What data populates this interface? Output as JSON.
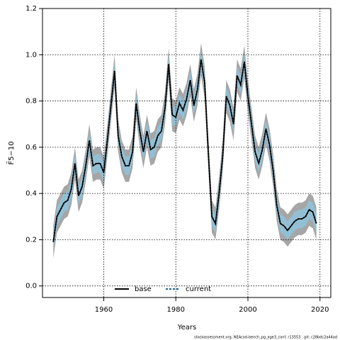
{
  "chart_data": {
    "type": "line",
    "x_label": "Years",
    "y_label": "F̄5−10",
    "footer": "stockassessment.org, NEAcod-bench_pg_age3_conf, r13553 , git: c28bdc2a44ad",
    "x": [
      1946,
      1947,
      1948,
      1949,
      1950,
      1951,
      1952,
      1953,
      1954,
      1955,
      1956,
      1957,
      1958,
      1959,
      1960,
      1961,
      1962,
      1963,
      1964,
      1965,
      1966,
      1967,
      1968,
      1969,
      1970,
      1971,
      1972,
      1973,
      1974,
      1975,
      1976,
      1977,
      1978,
      1979,
      1980,
      1981,
      1982,
      1983,
      1984,
      1985,
      1986,
      1987,
      1988,
      1989,
      1990,
      1991,
      1992,
      1993,
      1994,
      1995,
      1996,
      1997,
      1998,
      1999,
      2000,
      2001,
      2002,
      2003,
      2004,
      2005,
      2006,
      2007,
      2008,
      2009,
      2010,
      2011,
      2012,
      2013,
      2014,
      2015,
      2016,
      2017,
      2018,
      2019
    ],
    "series": [
      {
        "name": "base",
        "color": "#000000",
        "band_color": "#a6a6a6",
        "values": [
          0.19,
          0.3,
          0.33,
          0.36,
          0.37,
          0.42,
          0.53,
          0.39,
          0.43,
          0.52,
          0.63,
          0.52,
          0.53,
          0.53,
          0.49,
          0.63,
          0.78,
          0.93,
          0.65,
          0.56,
          0.52,
          0.52,
          0.58,
          0.79,
          0.67,
          0.58,
          0.67,
          0.59,
          0.6,
          0.65,
          0.67,
          0.77,
          0.96,
          0.74,
          0.73,
          0.79,
          0.76,
          0.81,
          0.89,
          0.78,
          0.85,
          0.98,
          0.88,
          0.58,
          0.3,
          0.27,
          0.4,
          0.56,
          0.82,
          0.78,
          0.7,
          0.91,
          0.87,
          0.97,
          0.82,
          0.7,
          0.58,
          0.53,
          0.59,
          0.68,
          0.61,
          0.5,
          0.35,
          0.27,
          0.26,
          0.24,
          0.26,
          0.28,
          0.29,
          0.29,
          0.3,
          0.33,
          0.32,
          0.27
        ],
        "lower": [
          0.12,
          0.23,
          0.26,
          0.29,
          0.3,
          0.35,
          0.46,
          0.32,
          0.36,
          0.45,
          0.56,
          0.45,
          0.46,
          0.46,
          0.42,
          0.56,
          0.71,
          0.86,
          0.58,
          0.49,
          0.45,
          0.45,
          0.51,
          0.72,
          0.6,
          0.51,
          0.6,
          0.52,
          0.53,
          0.58,
          0.6,
          0.7,
          0.89,
          0.67,
          0.66,
          0.72,
          0.69,
          0.74,
          0.82,
          0.71,
          0.78,
          0.91,
          0.81,
          0.51,
          0.23,
          0.2,
          0.33,
          0.49,
          0.75,
          0.71,
          0.63,
          0.84,
          0.8,
          0.9,
          0.75,
          0.63,
          0.51,
          0.46,
          0.52,
          0.61,
          0.54,
          0.43,
          0.28,
          0.2,
          0.19,
          0.17,
          0.19,
          0.21,
          0.22,
          0.22,
          0.23,
          0.26,
          0.25,
          0.2
        ],
        "upper": [
          0.26,
          0.37,
          0.4,
          0.43,
          0.44,
          0.49,
          0.6,
          0.46,
          0.5,
          0.59,
          0.7,
          0.59,
          0.6,
          0.6,
          0.56,
          0.7,
          0.85,
          1.0,
          0.72,
          0.63,
          0.59,
          0.59,
          0.65,
          0.86,
          0.74,
          0.65,
          0.74,
          0.66,
          0.67,
          0.72,
          0.74,
          0.84,
          1.03,
          0.81,
          0.8,
          0.86,
          0.83,
          0.88,
          0.96,
          0.85,
          0.92,
          1.05,
          0.95,
          0.65,
          0.37,
          0.34,
          0.47,
          0.63,
          0.89,
          0.85,
          0.77,
          0.98,
          0.94,
          1.04,
          0.89,
          0.77,
          0.65,
          0.6,
          0.66,
          0.75,
          0.68,
          0.57,
          0.42,
          0.34,
          0.33,
          0.31,
          0.33,
          0.35,
          0.36,
          0.36,
          0.37,
          0.4,
          0.39,
          0.34
        ]
      },
      {
        "name": "current",
        "color": "#1f5f8b",
        "band_color": "#8ec3dc",
        "dashed": true,
        "values": [
          0.19,
          0.3,
          0.33,
          0.36,
          0.37,
          0.42,
          0.53,
          0.39,
          0.43,
          0.52,
          0.63,
          0.52,
          0.53,
          0.53,
          0.49,
          0.63,
          0.78,
          0.93,
          0.65,
          0.56,
          0.52,
          0.52,
          0.58,
          0.79,
          0.67,
          0.58,
          0.67,
          0.59,
          0.6,
          0.65,
          0.67,
          0.77,
          0.96,
          0.74,
          0.73,
          0.79,
          0.76,
          0.81,
          0.89,
          0.78,
          0.85,
          0.98,
          0.88,
          0.58,
          0.3,
          0.27,
          0.4,
          0.56,
          0.82,
          0.78,
          0.7,
          0.91,
          0.87,
          0.97,
          0.82,
          0.7,
          0.58,
          0.53,
          0.59,
          0.68,
          0.61,
          0.5,
          0.35,
          0.27,
          0.26,
          0.24,
          0.26,
          0.28,
          0.29,
          0.29,
          0.3,
          0.33,
          0.32,
          0.27
        ],
        "lower": [
          0.15,
          0.26,
          0.29,
          0.32,
          0.33,
          0.38,
          0.49,
          0.35,
          0.39,
          0.48,
          0.59,
          0.48,
          0.49,
          0.49,
          0.45,
          0.59,
          0.74,
          0.89,
          0.61,
          0.52,
          0.48,
          0.48,
          0.54,
          0.75,
          0.63,
          0.54,
          0.63,
          0.55,
          0.56,
          0.61,
          0.63,
          0.73,
          0.92,
          0.7,
          0.69,
          0.75,
          0.72,
          0.77,
          0.85,
          0.74,
          0.81,
          0.94,
          0.84,
          0.54,
          0.26,
          0.23,
          0.36,
          0.52,
          0.78,
          0.74,
          0.66,
          0.87,
          0.83,
          0.93,
          0.78,
          0.66,
          0.54,
          0.49,
          0.55,
          0.64,
          0.57,
          0.46,
          0.31,
          0.23,
          0.22,
          0.2,
          0.22,
          0.24,
          0.25,
          0.25,
          0.26,
          0.29,
          0.28,
          0.23
        ],
        "upper": [
          0.23,
          0.34,
          0.37,
          0.4,
          0.41,
          0.46,
          0.57,
          0.43,
          0.47,
          0.56,
          0.67,
          0.56,
          0.57,
          0.57,
          0.53,
          0.67,
          0.82,
          0.97,
          0.69,
          0.6,
          0.56,
          0.56,
          0.62,
          0.83,
          0.71,
          0.62,
          0.71,
          0.63,
          0.64,
          0.69,
          0.71,
          0.81,
          1.0,
          0.78,
          0.77,
          0.83,
          0.8,
          0.85,
          0.93,
          0.82,
          0.89,
          1.02,
          0.92,
          0.62,
          0.34,
          0.31,
          0.44,
          0.6,
          0.86,
          0.82,
          0.74,
          0.95,
          0.91,
          1.01,
          0.86,
          0.74,
          0.62,
          0.57,
          0.63,
          0.72,
          0.65,
          0.54,
          0.39,
          0.31,
          0.3,
          0.28,
          0.3,
          0.32,
          0.33,
          0.33,
          0.34,
          0.37,
          0.36,
          0.31
        ]
      }
    ],
    "xlim": [
      1943,
      2023
    ],
    "xticks": [
      1960,
      1980,
      2000,
      2020
    ],
    "ylim": [
      -0.05,
      1.2
    ],
    "yticks": [
      {
        "value": 0,
        "label": "0.0"
      },
      0.2,
      0.4,
      0.6,
      0.8,
      {
        "value": 1,
        "label": "1.0"
      },
      1.2
    ],
    "grid": true,
    "legend": "bottom"
  }
}
